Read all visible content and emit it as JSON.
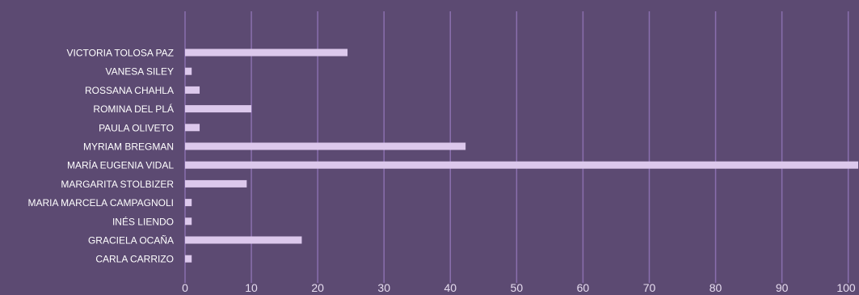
{
  "chart_data": {
    "type": "bar",
    "orientation": "horizontal",
    "categories": [
      "VICTORIA TOLOSA PAZ",
      "VANESA SILEY",
      "ROSSANA CHAHLA",
      "ROMINA DEL PLÁ",
      "PAULA OLIVETO",
      "MYRIAM BREGMAN",
      "MARÍA EUGENIA VIDAL",
      "MARGARITA STOLBIZER",
      "MARIA MARCELA CAMPAGNOLI",
      "INÉS LIENDO",
      "GRACIELA OCAÑA",
      "CARLA CARRIZO"
    ],
    "values": [
      24.5,
      1,
      2.2,
      10,
      2.2,
      42.3,
      101.5,
      9.3,
      1,
      1,
      17.6,
      1
    ],
    "x_ticks": [
      0,
      10,
      20,
      30,
      40,
      50,
      60,
      70,
      80,
      90,
      100
    ],
    "x_tick_labels": [
      "0",
      "10",
      "20",
      "30",
      "40",
      "50",
      "60",
      "70",
      "80",
      "90",
      "100"
    ],
    "xlim": [
      0,
      101.5
    ],
    "title": "",
    "xlabel": "",
    "ylabel": "",
    "grid": true,
    "legend": "none",
    "colors": {
      "background": "#5c4a72",
      "bar": "#dcc8ec",
      "grid": "#8a6fae",
      "text": "#ffffff",
      "tick_text": "#e6dcef"
    }
  }
}
